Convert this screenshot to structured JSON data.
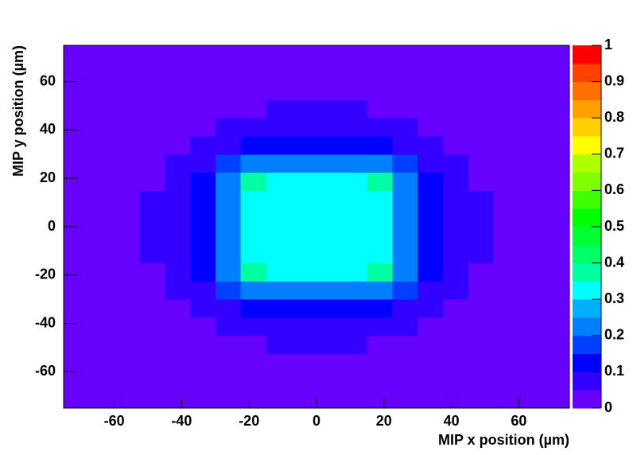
{
  "chart_data": {
    "type": "heatmap",
    "xlabel": "MIP x position (µm)",
    "ylabel": "MIP y position (µm)",
    "xlim": [
      -75,
      75
    ],
    "ylim": [
      -75,
      75
    ],
    "xticks": [
      -60,
      -40,
      -20,
      0,
      20,
      40,
      60
    ],
    "yticks": [
      -60,
      -40,
      -20,
      0,
      20,
      40,
      60
    ],
    "zlim": [
      0,
      1
    ],
    "zticks": [
      0,
      0.1,
      0.2,
      0.3,
      0.4,
      0.5,
      0.6,
      0.7,
      0.8,
      0.9,
      1
    ],
    "colors": [
      "#6600ff",
      "#3300ff",
      "#0000ff",
      "#0040ff",
      "#0080ff",
      "#00b0ff",
      "#00ffff",
      "#00ffa0",
      "#00ff66",
      "#00ff33",
      "#00ff00",
      "#40ff00",
      "#80ff00",
      "#b0ff00",
      "#ffff00",
      "#ffd000",
      "#ffa000",
      "#ff7000",
      "#ff4000",
      "#ff0000"
    ],
    "z": [
      [
        0.02,
        0.02,
        0.02,
        0.02,
        0.02,
        0.02,
        0.02,
        0.02,
        0.02,
        0.02,
        0.02,
        0.02,
        0.02,
        0.02,
        0.02,
        0.02,
        0.02,
        0.02,
        0.02,
        0.02
      ],
      [
        0.02,
        0.02,
        0.02,
        0.02,
        0.02,
        0.02,
        0.02,
        0.02,
        0.02,
        0.02,
        0.02,
        0.02,
        0.02,
        0.02,
        0.02,
        0.02,
        0.02,
        0.02,
        0.02,
        0.02
      ],
      [
        0.02,
        0.02,
        0.02,
        0.02,
        0.02,
        0.02,
        0.02,
        0.02,
        0.02,
        0.02,
        0.02,
        0.02,
        0.02,
        0.02,
        0.02,
        0.02,
        0.02,
        0.02,
        0.02,
        0.02
      ],
      [
        0.02,
        0.02,
        0.02,
        0.02,
        0.02,
        0.02,
        0.02,
        0.04,
        0.06,
        0.06,
        0.06,
        0.06,
        0.04,
        0.02,
        0.02,
        0.02,
        0.02,
        0.02,
        0.02,
        0.02
      ],
      [
        0.02,
        0.02,
        0.02,
        0.02,
        0.02,
        0.03,
        0.07,
        0.07,
        0.08,
        0.08,
        0.08,
        0.08,
        0.07,
        0.07,
        0.03,
        0.02,
        0.02,
        0.02,
        0.02,
        0.02
      ],
      [
        0.02,
        0.02,
        0.02,
        0.02,
        0.03,
        0.07,
        0.08,
        0.12,
        0.12,
        0.12,
        0.12,
        0.12,
        0.12,
        0.08,
        0.07,
        0.03,
        0.02,
        0.02,
        0.02,
        0.02
      ],
      [
        0.02,
        0.02,
        0.02,
        0.02,
        0.07,
        0.08,
        0.17,
        0.2,
        0.22,
        0.22,
        0.22,
        0.22,
        0.2,
        0.17,
        0.08,
        0.07,
        0.02,
        0.02,
        0.02,
        0.02
      ],
      [
        0.02,
        0.02,
        0.02,
        0.04,
        0.07,
        0.12,
        0.2,
        0.38,
        0.34,
        0.32,
        0.32,
        0.34,
        0.38,
        0.2,
        0.12,
        0.07,
        0.04,
        0.02,
        0.02,
        0.02
      ],
      [
        0.02,
        0.02,
        0.02,
        0.06,
        0.08,
        0.12,
        0.22,
        0.34,
        0.33,
        0.32,
        0.32,
        0.33,
        0.34,
        0.22,
        0.12,
        0.08,
        0.06,
        0.02,
        0.02,
        0.02
      ],
      [
        0.02,
        0.02,
        0.02,
        0.06,
        0.08,
        0.12,
        0.22,
        0.32,
        0.32,
        0.32,
        0.32,
        0.32,
        0.32,
        0.22,
        0.12,
        0.08,
        0.06,
        0.02,
        0.02,
        0.02
      ],
      [
        0.02,
        0.02,
        0.02,
        0.06,
        0.08,
        0.12,
        0.22,
        0.32,
        0.32,
        0.32,
        0.32,
        0.32,
        0.32,
        0.22,
        0.12,
        0.08,
        0.06,
        0.02,
        0.02,
        0.02
      ],
      [
        0.02,
        0.02,
        0.02,
        0.06,
        0.08,
        0.12,
        0.22,
        0.34,
        0.33,
        0.32,
        0.32,
        0.33,
        0.34,
        0.22,
        0.12,
        0.08,
        0.06,
        0.02,
        0.02,
        0.02
      ],
      [
        0.02,
        0.02,
        0.02,
        0.04,
        0.07,
        0.12,
        0.2,
        0.38,
        0.34,
        0.32,
        0.32,
        0.34,
        0.38,
        0.2,
        0.12,
        0.07,
        0.04,
        0.02,
        0.02,
        0.02
      ],
      [
        0.02,
        0.02,
        0.02,
        0.02,
        0.07,
        0.08,
        0.17,
        0.2,
        0.22,
        0.22,
        0.22,
        0.22,
        0.2,
        0.17,
        0.08,
        0.07,
        0.02,
        0.02,
        0.02,
        0.02
      ],
      [
        0.02,
        0.02,
        0.02,
        0.02,
        0.03,
        0.07,
        0.08,
        0.12,
        0.12,
        0.12,
        0.12,
        0.12,
        0.12,
        0.08,
        0.07,
        0.03,
        0.02,
        0.02,
        0.02,
        0.02
      ],
      [
        0.02,
        0.02,
        0.02,
        0.02,
        0.02,
        0.03,
        0.07,
        0.07,
        0.08,
        0.08,
        0.08,
        0.08,
        0.07,
        0.07,
        0.03,
        0.02,
        0.02,
        0.02,
        0.02,
        0.02
      ],
      [
        0.02,
        0.02,
        0.02,
        0.02,
        0.02,
        0.02,
        0.02,
        0.04,
        0.06,
        0.06,
        0.06,
        0.06,
        0.04,
        0.02,
        0.02,
        0.02,
        0.02,
        0.02,
        0.02,
        0.02
      ],
      [
        0.02,
        0.02,
        0.02,
        0.02,
        0.02,
        0.02,
        0.02,
        0.02,
        0.02,
        0.02,
        0.02,
        0.02,
        0.02,
        0.02,
        0.02,
        0.02,
        0.02,
        0.02,
        0.02,
        0.02
      ],
      [
        0.02,
        0.02,
        0.02,
        0.02,
        0.02,
        0.02,
        0.02,
        0.02,
        0.02,
        0.02,
        0.02,
        0.02,
        0.02,
        0.02,
        0.02,
        0.02,
        0.02,
        0.02,
        0.02,
        0.02
      ],
      [
        0.02,
        0.02,
        0.02,
        0.02,
        0.02,
        0.02,
        0.02,
        0.02,
        0.02,
        0.02,
        0.02,
        0.02,
        0.02,
        0.02,
        0.02,
        0.02,
        0.02,
        0.02,
        0.02,
        0.02
      ]
    ]
  }
}
